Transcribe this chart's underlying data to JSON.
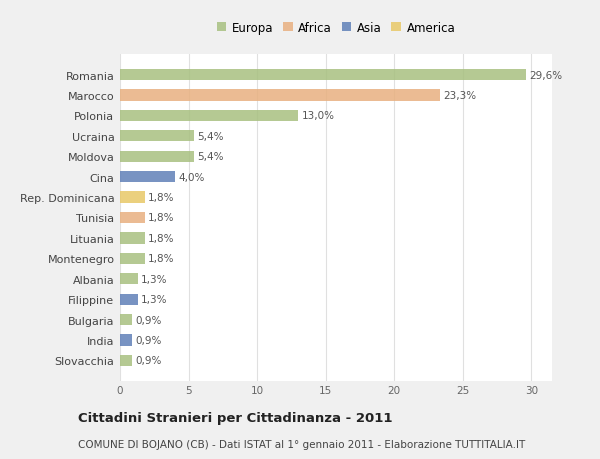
{
  "categories": [
    "Romania",
    "Marocco",
    "Polonia",
    "Ucraina",
    "Moldova",
    "Cina",
    "Rep. Dominicana",
    "Tunisia",
    "Lituania",
    "Montenegro",
    "Albania",
    "Filippine",
    "Bulgaria",
    "India",
    "Slovacchia"
  ],
  "values": [
    29.6,
    23.3,
    13.0,
    5.4,
    5.4,
    4.0,
    1.8,
    1.8,
    1.8,
    1.8,
    1.3,
    1.3,
    0.9,
    0.9,
    0.9
  ],
  "labels": [
    "29,6%",
    "23,3%",
    "13,0%",
    "5,4%",
    "5,4%",
    "4,0%",
    "1,8%",
    "1,8%",
    "1,8%",
    "1,8%",
    "1,3%",
    "1,3%",
    "0,9%",
    "0,9%",
    "0,9%"
  ],
  "continents": [
    "Europa",
    "Africa",
    "Europa",
    "Europa",
    "Europa",
    "Asia",
    "America",
    "Africa",
    "Europa",
    "Europa",
    "Europa",
    "Asia",
    "Europa",
    "Asia",
    "Europa"
  ],
  "continent_colors": {
    "Europa": "#a8c080",
    "Africa": "#e8b080",
    "Asia": "#6080b8",
    "America": "#e8c868"
  },
  "legend_order": [
    "Europa",
    "Africa",
    "Asia",
    "America"
  ],
  "title": "Cittadini Stranieri per Cittadinanza - 2011",
  "subtitle": "COMUNE DI BOJANO (CB) - Dati ISTAT al 1° gennaio 2011 - Elaborazione TUTTITALIA.IT",
  "xlim": [
    0,
    31.5
  ],
  "xticks": [
    0,
    5,
    10,
    15,
    20,
    25,
    30
  ],
  "fig_bg": "#f0f0f0",
  "plot_bg": "#ffffff",
  "grid_color": "#e0e0e0",
  "title_fontsize": 9.5,
  "subtitle_fontsize": 7.5,
  "bar_height": 0.55
}
